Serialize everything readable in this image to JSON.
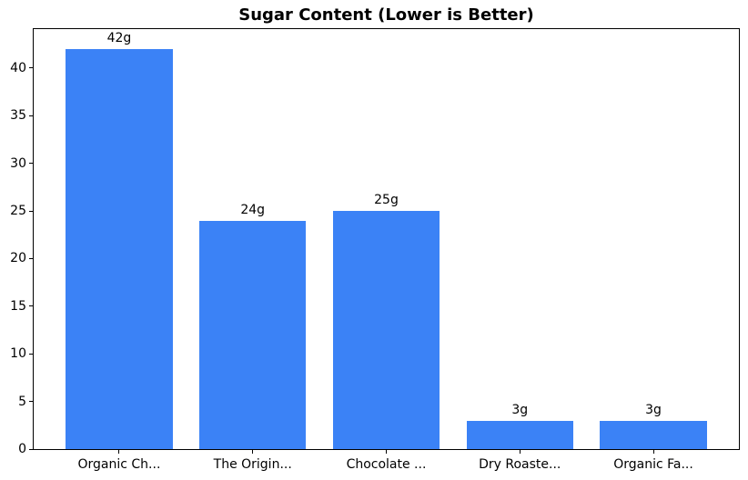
{
  "chart_data": {
    "type": "bar",
    "title": "Sugar Content (Lower is Better)",
    "categories": [
      "Organic Ch...",
      "The Origin...",
      "Chocolate ...",
      "Dry Roaste...",
      "Organic Fa..."
    ],
    "values": [
      42,
      24,
      25,
      3,
      3
    ],
    "bar_labels": [
      "42g",
      "24g",
      "25g",
      "3g",
      "3g"
    ],
    "xlabel": "",
    "ylabel": "",
    "ylim": [
      0,
      44.1
    ],
    "yticks": [
      0,
      5,
      10,
      15,
      20,
      25,
      30,
      35,
      40
    ],
    "grid": false,
    "legend_position": "none",
    "bar_width_fraction": 0.8,
    "bar_color": "#3b82f6",
    "axis_color": "#000000",
    "text_color": "#000000",
    "background_color": "#ffffff"
  }
}
